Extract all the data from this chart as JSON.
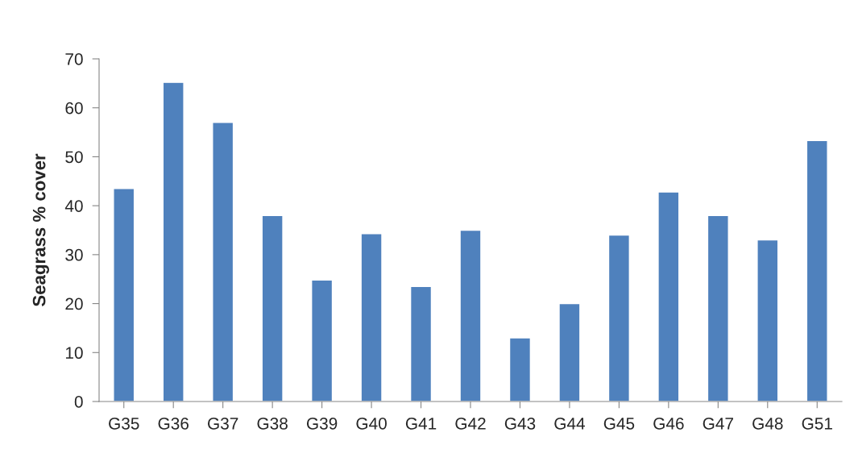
{
  "chart_data": {
    "type": "bar",
    "ylabel": "Seagrass % cover",
    "categories": [
      "G35",
      "G36",
      "G37",
      "G38",
      "G39",
      "G40",
      "G41",
      "G42",
      "G43",
      "G44",
      "G45",
      "G46",
      "G47",
      "G48",
      "G51"
    ],
    "values": [
      43.5,
      65.2,
      57,
      38,
      24.8,
      34.3,
      23.5,
      35,
      13,
      20,
      34,
      42.8,
      38,
      33,
      53.3
    ],
    "color": "#4f81bd",
    "ylim": [
      0,
      70
    ],
    "yticks": [
      0,
      10,
      20,
      30,
      40,
      50,
      60,
      70
    ],
    "grid": false,
    "legend": false
  }
}
